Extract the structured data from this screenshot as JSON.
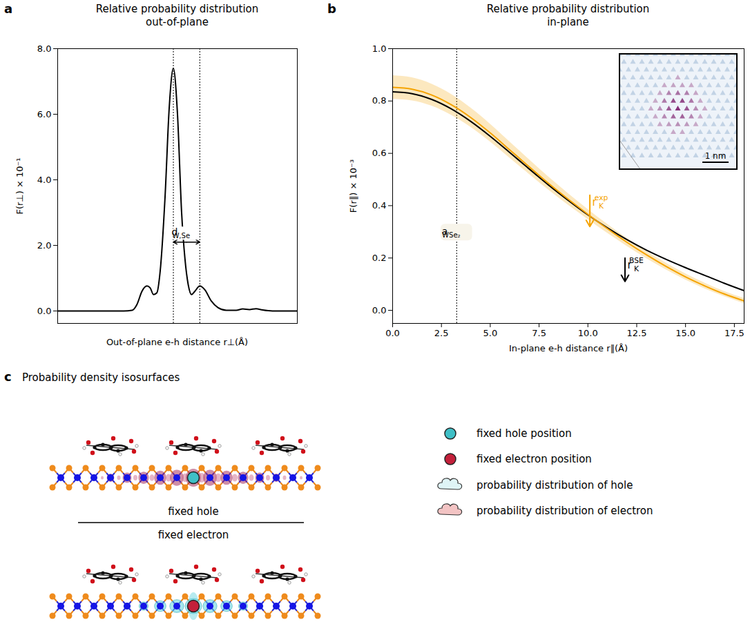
{
  "chart_data": [
    {
      "type": "line",
      "panel_label": "a",
      "title": "Relative probability distribution\nout-of-plane",
      "x_label": "Out-of-plane e-h distance r⊥(Å)",
      "y_label": "F(r⊥) × 10⁻¹",
      "tick_labels": "y",
      "xlim": [
        -7,
        7.5
      ],
      "ylim": [
        -0.38,
        8.0
      ],
      "yticks": [
        {
          "value": 0,
          "label": "0.0"
        },
        {
          "value": 2,
          "label": "2.0"
        },
        {
          "value": 4,
          "label": "4.0"
        },
        {
          "value": 6,
          "label": "6.0"
        },
        {
          "value": 8,
          "label": "8.0"
        }
      ],
      "x": [
        -7,
        -3,
        -2.5,
        -2.2,
        -1.9,
        -1.6,
        -1.4,
        -1.2,
        -1.0,
        -0.8,
        -0.5,
        -0.25,
        0,
        0.25,
        0.5,
        0.7,
        0.9,
        1.1,
        1.3,
        1.6,
        1.9,
        2.3,
        2.7,
        3.2,
        3.8,
        4.2,
        4.6,
        5.0,
        5.4,
        6.0,
        7.5
      ],
      "values": [
        0,
        0,
        0.02,
        0.2,
        0.6,
        0.76,
        0.7,
        0.5,
        0.55,
        1.2,
        3.5,
        6.2,
        7.4,
        6.0,
        3.0,
        1.6,
        0.8,
        0.5,
        0.6,
        0.76,
        0.65,
        0.3,
        0.1,
        0.02,
        0.02,
        0.06,
        0.04,
        0.07,
        0.03,
        0,
        0
      ],
      "color": "#000000",
      "vlines": [
        {
          "x": 0
        },
        {
          "x": 1.6
        }
      ],
      "annotations": [
        {
          "text": "d",
          "subscript": "W,Se",
          "x": [
            0,
            1.6
          ],
          "y": 2.1
        }
      ]
    },
    {
      "type": "line",
      "panel_label": "b",
      "title": "Relative probability distribution\nin-plane",
      "x_label": "In-plane e-h distance r∥(Å)",
      "y_label": "F(r∥) × 10⁻³",
      "xlim": [
        0,
        18
      ],
      "ylim": [
        -0.05,
        1.0
      ],
      "xticks": [
        {
          "value": 0,
          "label": "0.0"
        },
        {
          "value": 2.5,
          "label": "2.5"
        },
        {
          "value": 5,
          "label": "5.0"
        },
        {
          "value": 7.5,
          "label": "7.5"
        },
        {
          "value": 10,
          "label": "10.0"
        },
        {
          "value": 12.5,
          "label": "12.5"
        },
        {
          "value": 15,
          "label": "15.0"
        },
        {
          "value": 17.5,
          "label": "17.5"
        }
      ],
      "yticks": [
        {
          "value": 0,
          "label": "0.0"
        },
        {
          "value": 0.2,
          "label": "0.2"
        },
        {
          "value": 0.4,
          "label": "0.4"
        },
        {
          "value": 0.6,
          "label": "0.6"
        },
        {
          "value": 0.8,
          "label": "0.8"
        },
        {
          "value": 1,
          "label": "1.0"
        }
      ],
      "x": [
        0,
        1,
        2,
        3,
        4,
        5,
        6,
        7,
        8,
        9,
        10,
        11,
        12,
        13,
        14,
        15,
        16,
        17,
        18
      ],
      "series": [
        {
          "color": "#000000",
          "values": [
            0.835,
            0.828,
            0.806,
            0.77,
            0.722,
            0.665,
            0.603,
            0.54,
            0.478,
            0.42,
            0.365,
            0.315,
            0.27,
            0.23,
            0.195,
            0.163,
            0.133,
            0.103,
            0.075
          ]
        },
        {
          "color": "#f5a300",
          "values": [
            0.852,
            0.845,
            0.823,
            0.786,
            0.737,
            0.678,
            0.613,
            0.548,
            0.484,
            0.424,
            0.367,
            0.312,
            0.26,
            0.212,
            0.168,
            0.128,
            0.093,
            0.062,
            0.036
          ],
          "lower": [
            0.807,
            0.801,
            0.781,
            0.746,
            0.7,
            0.644,
            0.582,
            0.52,
            0.459,
            0.402,
            0.348,
            0.295,
            0.245,
            0.198,
            0.155,
            0.116,
            0.082,
            0.052,
            0.026
          ],
          "upper": [
            0.897,
            0.889,
            0.865,
            0.826,
            0.774,
            0.712,
            0.644,
            0.576,
            0.509,
            0.446,
            0.386,
            0.329,
            0.275,
            0.226,
            0.181,
            0.14,
            0.104,
            0.072,
            0.046
          ]
        }
      ],
      "vlines": [
        {
          "x": 3.28,
          "text": "a",
          "subscript": "WSe₂",
          "label_y": 0.3
        }
      ],
      "annotations": [
        {
          "text": "r",
          "subscript": "K",
          "superscript": "exp",
          "x": 10.1,
          "y": [
            0.44,
            0.32
          ],
          "color": "#f5a300"
        },
        {
          "text": "r",
          "subscript": "K",
          "superscript": "BSE",
          "x": 11.9,
          "y": [
            0.2,
            0.11
          ],
          "color": "#000000"
        }
      ],
      "inset": {
        "scale_bar": "1 nm"
      }
    }
  ],
  "diagram": {
    "panel_label": "c",
    "title": "Probability density isosurfaces",
    "upper_label": "fixed hole",
    "lower_label": "fixed electron",
    "legend": [
      {
        "label": "fixed hole position",
        "marker": "circle",
        "color": "#3fbfc6"
      },
      {
        "label": "fixed electron position",
        "marker": "circle",
        "color": "#c3203a"
      },
      {
        "label": "probability distribution of hole",
        "marker": "cloud",
        "color": "#dff4f6"
      },
      {
        "label": "probability distribution of electron",
        "marker": "cloud",
        "color": "#f3c4c4"
      }
    ]
  }
}
